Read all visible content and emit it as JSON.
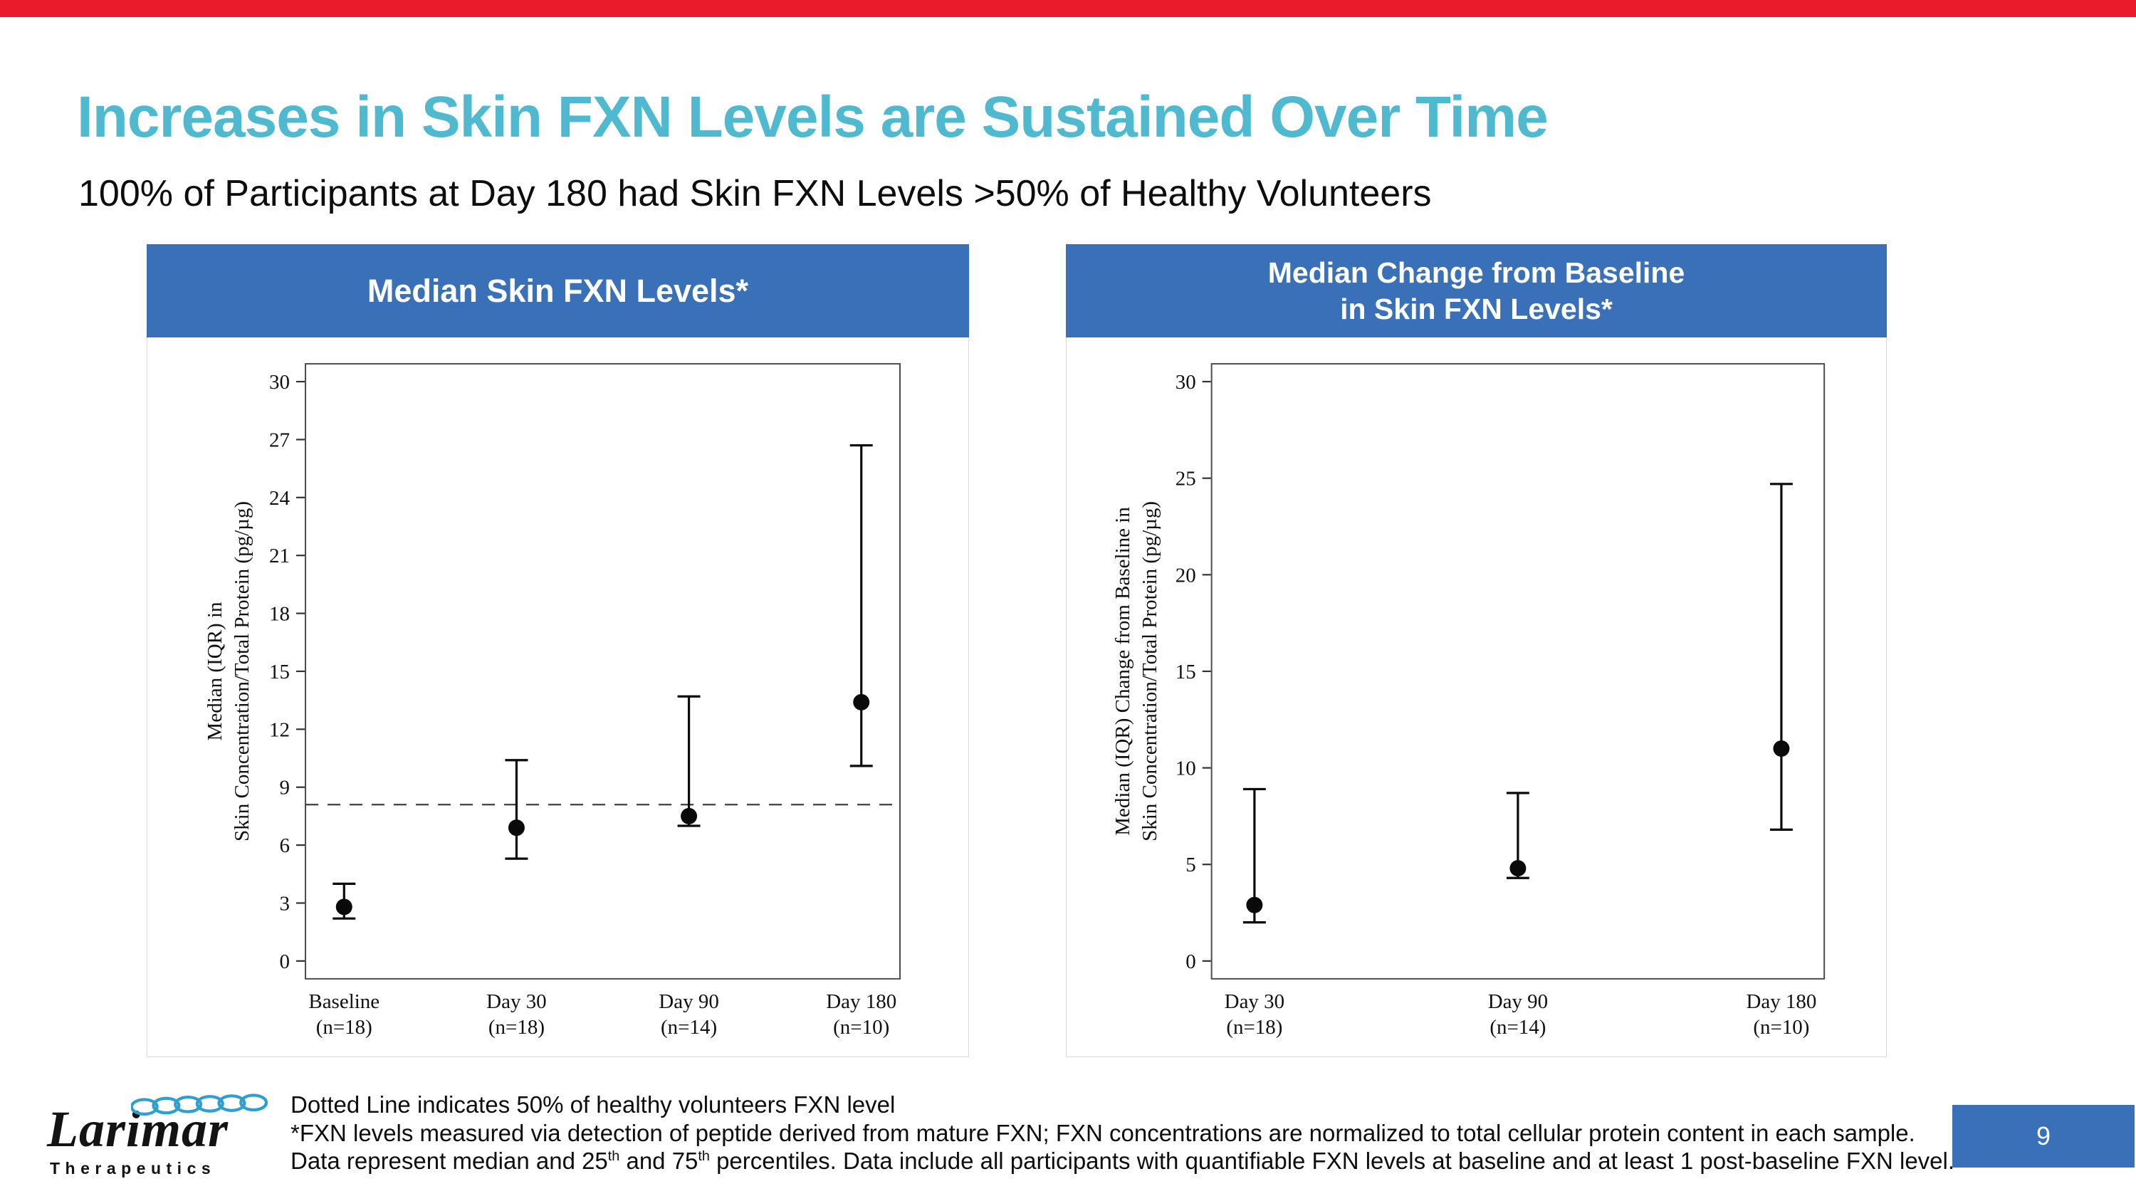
{
  "slide": {
    "title": "Increases in Skin FXN Levels are Sustained Over Time",
    "subtitle": "100% of Participants at Day 180 had Skin FXN Levels >50% of Healthy Volunteers",
    "page_number": "9"
  },
  "logo": {
    "name": "Larimar",
    "tagline": "Therapeutics"
  },
  "colors": {
    "accent_red": "#ea1c2c",
    "title_teal": "#4eb9cf",
    "header_blue": "#3a70b7",
    "logo_blue": "#2f9fd0",
    "chart_ink": "#0a0a0a"
  },
  "footnotes": {
    "line1": "Dotted Line indicates 50% of healthy volunteers FXN level",
    "line2": "*FXN levels measured via detection of peptide derived from mature FXN; FXN concentrations are normalized to total cellular protein content in each sample.",
    "line3": {
      "a": "Data represent median and 25",
      "sup1": "th",
      "b": " and 75",
      "sup2": "th",
      "c": " percentiles. Data include all participants with quantifiable FXN levels at baseline and at least 1 post-baseline FXN level."
    }
  },
  "chart_data": [
    {
      "type": "scatter",
      "title_lines": [
        "Median Skin FXN Levels*"
      ],
      "ylabel_lines": [
        "Median (IQR) in",
        "Skin Concentration/Total Protein (pg/µg)"
      ],
      "ylim": [
        0,
        30
      ],
      "yticks": [
        0,
        3,
        6,
        9,
        12,
        15,
        18,
        21,
        24,
        27,
        30
      ],
      "reference_line_y": 8.1,
      "grid": false,
      "legend": false,
      "categories": [
        "Baseline",
        "Day 30",
        "Day 90",
        "Day 180"
      ],
      "category_sublabels": [
        "(n=18)",
        "(n=18)",
        "(n=14)",
        "(n=10)"
      ],
      "series": [
        {
          "name": "Median (IQR) Skin FXN Level",
          "median": [
            2.8,
            6.9,
            7.5,
            13.4
          ],
          "q1": [
            2.2,
            5.3,
            7.0,
            10.1
          ],
          "q3": [
            4.0,
            10.4,
            13.7,
            26.7
          ]
        }
      ]
    },
    {
      "type": "scatter",
      "title_lines": [
        "Median Change from Baseline",
        "in Skin FXN Levels*"
      ],
      "ylabel_lines": [
        "Median (IQR) Change from Baseline in",
        "Skin Concentration/Total Protein (pg/µg)"
      ],
      "ylim": [
        0,
        30
      ],
      "yticks": [
        0,
        5,
        10,
        15,
        20,
        25,
        30
      ],
      "reference_line_y": null,
      "grid": false,
      "legend": false,
      "categories": [
        "Day 30",
        "Day 90",
        "Day 180"
      ],
      "category_sublabels": [
        "(n=18)",
        "(n=14)",
        "(n=10)"
      ],
      "series": [
        {
          "name": "Median (IQR) Change from Baseline",
          "median": [
            2.9,
            4.8,
            11.0
          ],
          "q1": [
            2.0,
            4.3,
            6.8
          ],
          "q3": [
            8.9,
            8.7,
            24.7
          ]
        }
      ]
    }
  ]
}
